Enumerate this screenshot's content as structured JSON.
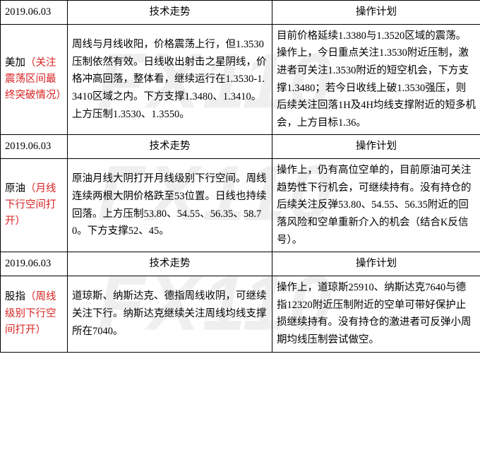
{
  "watermark_text": "FX110",
  "sections": [
    {
      "date": "2019.06.03",
      "trend_header": "技术走势",
      "plan_header": "操作计划",
      "label_main": "美加",
      "label_note": "（关注震荡区间最终突破情况）",
      "trend": "周线与月线收阳，价格震荡上行，但1.3530压制依然有效。日线收出射击之星阴线，价格冲高回落，整体看，继续运行在1.3530-1.3410区域之内。下方支撑1.3480、1.3410。上方压制1.3530、1.3550。",
      "plan": "目前价格延续1.3380与1.3520区域的震荡。操作上，今日重点关注1.3530附近压制，激进者可关注1.3530附近的短空机会，下方支撑1.3480；若今日收线上破1.3530强压，则后续关注回落1H及4H均线支撑附近的短多机会，上方目标1.36。"
    },
    {
      "date": "2019.06.03",
      "trend_header": "技术走势",
      "plan_header": "操作计划",
      "label_main": "原油",
      "label_note": "（月线下行空间打开）",
      "trend": "原油月线大阴打开月线级别下行空间。周线连续两根大阴价格跌至53位置。日线也持续回落。上方压制53.80、54.55、56.35、58.70。下方支撑52、45。",
      "plan": "操作上，仍有高位空单的，目前原油可关注趋势性下行机会，可继续持有。没有持仓的后续关注反弹53.80、54.55、56.35附近的回落风险和空单重新介入的机会（结合K反信号）。"
    },
    {
      "date": "2019.06.03",
      "trend_header": "技术走势",
      "plan_header": "操作计划",
      "label_main": "股指",
      "label_note": "（周线级别下行空间打开）",
      "trend": "道琼斯、纳斯达克、德指周线收阴，可继续关注下行。纳斯达克继续关注周线均线支撑所在7040。",
      "plan": "操作上，道琼斯25910、纳斯达克7640与德指12320附近压制附近的空单可带好保护止损继续持有。没有持仓的激进者可反弹小周期均线压制尝试做空。"
    }
  ]
}
